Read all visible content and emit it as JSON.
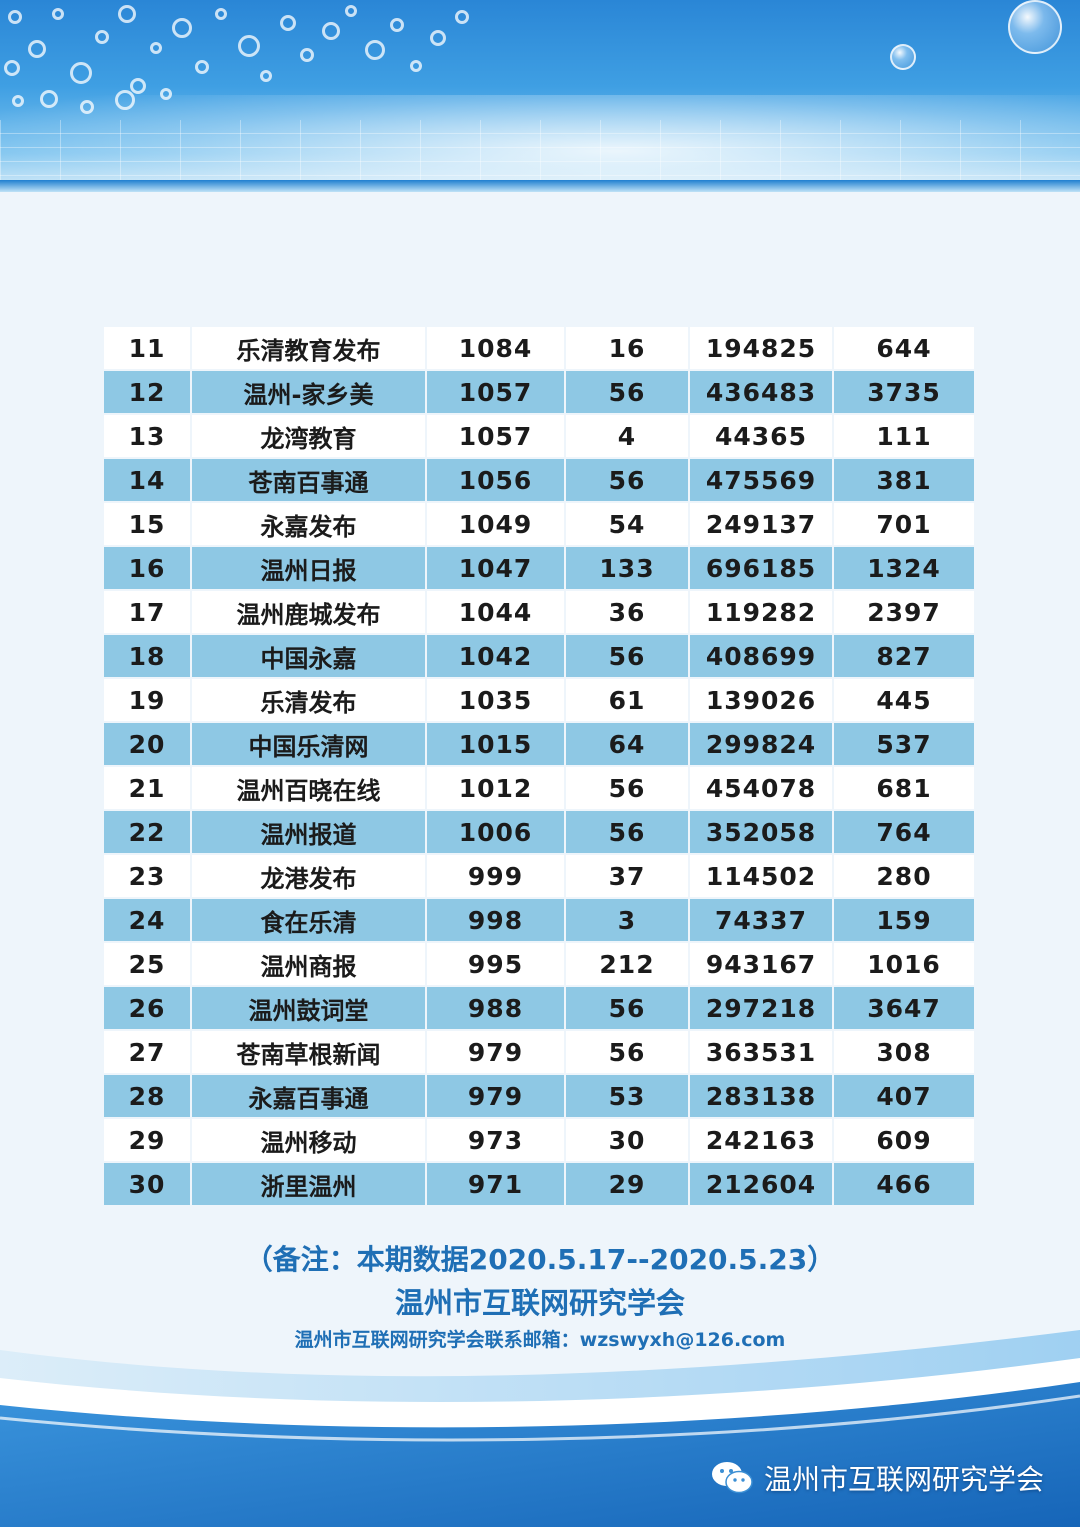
{
  "table": {
    "rows": [
      [
        "11",
        "乐清教育发布",
        "1084",
        "16",
        "194825",
        "644"
      ],
      [
        "12",
        "温州-家乡美",
        "1057",
        "56",
        "436483",
        "3735"
      ],
      [
        "13",
        "龙湾教育",
        "1057",
        "4",
        "44365",
        "111"
      ],
      [
        "14",
        "苍南百事通",
        "1056",
        "56",
        "475569",
        "381"
      ],
      [
        "15",
        "永嘉发布",
        "1049",
        "54",
        "249137",
        "701"
      ],
      [
        "16",
        "温州日报",
        "1047",
        "133",
        "696185",
        "1324"
      ],
      [
        "17",
        "温州鹿城发布",
        "1044",
        "36",
        "119282",
        "2397"
      ],
      [
        "18",
        "中国永嘉",
        "1042",
        "56",
        "408699",
        "827"
      ],
      [
        "19",
        "乐清发布",
        "1035",
        "61",
        "139026",
        "445"
      ],
      [
        "20",
        "中国乐清网",
        "1015",
        "64",
        "299824",
        "537"
      ],
      [
        "21",
        "温州百晓在线",
        "1012",
        "56",
        "454078",
        "681"
      ],
      [
        "22",
        "温州报道",
        "1006",
        "56",
        "352058",
        "764"
      ],
      [
        "23",
        "龙港发布",
        "999",
        "37",
        "114502",
        "280"
      ],
      [
        "24",
        "食在乐清",
        "998",
        "3",
        "74337",
        "159"
      ],
      [
        "25",
        "温州商报",
        "995",
        "212",
        "943167",
        "1016"
      ],
      [
        "26",
        "温州鼓词堂",
        "988",
        "56",
        "297218",
        "3647"
      ],
      [
        "27",
        "苍南草根新闻",
        "979",
        "56",
        "363531",
        "308"
      ],
      [
        "28",
        "永嘉百事通",
        "979",
        "53",
        "283138",
        "407"
      ],
      [
        "29",
        "温州移动",
        "973",
        "30",
        "242163",
        "609"
      ],
      [
        "30",
        "浙里温州",
        "971",
        "29",
        "212604",
        "466"
      ]
    ]
  },
  "notes": {
    "period": "（备注：本期数据2020.5.17--2020.5.23）",
    "organization": "温州市互联网研究学会",
    "contact": "温州市互联网研究学会联系邮箱：wzswyxh@126.com"
  },
  "footer": {
    "wechat_label": "温州市互联网研究学会",
    "wechat_icon": "wechat-icon"
  },
  "colors": {
    "banner_blue": "#2a86d6",
    "row_stripe": "#8ec8e4",
    "note_text": "#1f6fb5"
  }
}
